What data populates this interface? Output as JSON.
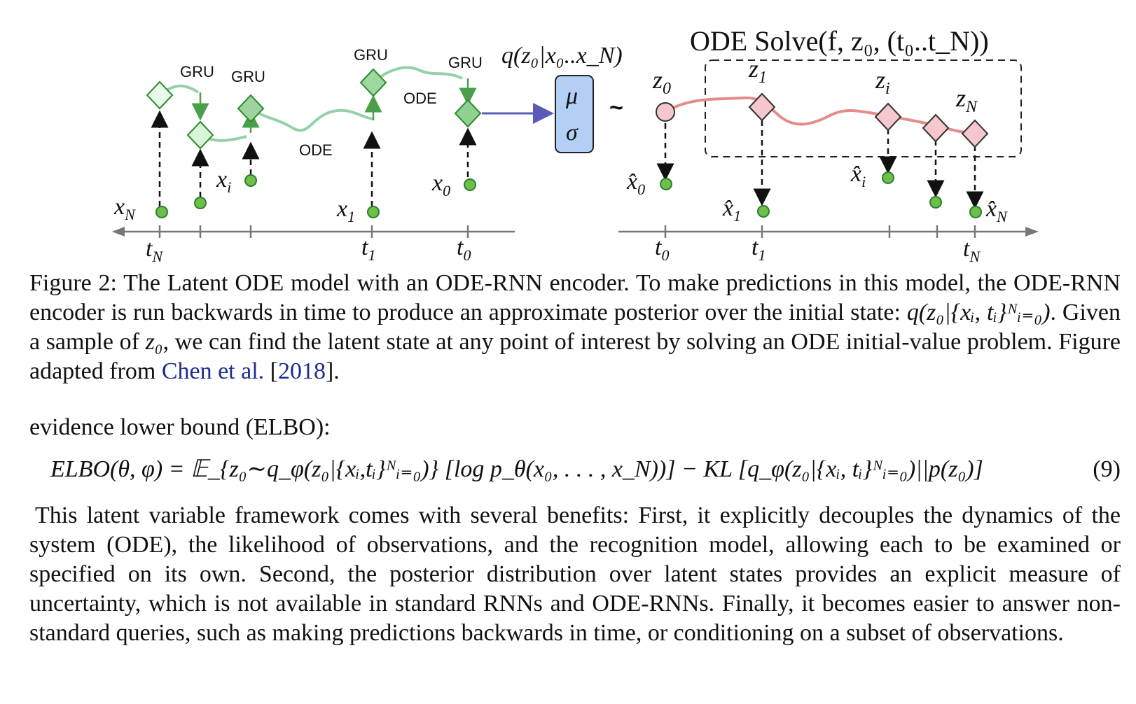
{
  "figure": {
    "left_labels": {
      "gru": [
        "GRU",
        "GRU",
        "GRU",
        "GRU"
      ],
      "ode": [
        "ODE",
        "ODE"
      ],
      "xN": "x",
      "xN_sub": "N",
      "xi": "x",
      "xi_sub": "i",
      "x1": "x",
      "x1_sub": "1",
      "x0": "x",
      "x0_sub": "0",
      "tN": "t",
      "tN_sub": "N",
      "t1": "t",
      "t1_sub": "1",
      "t0": "t",
      "t0_sub": "0"
    },
    "posterior_label": "q(z₀|x₀..x_N)",
    "mu": "μ",
    "sigma": "σ",
    "tilde": "~",
    "right_labels": {
      "solve": "ODE Solve(f, z₀, (t₀..t_N))",
      "z0": "z",
      "z0_sub": "0",
      "z1": "z",
      "z1_sub": "1",
      "zi": "z",
      "zi_sub": "i",
      "zN": "z",
      "zN_sub": "N",
      "xhat0": "x̂",
      "xhat0_sub": "0",
      "xhat1": "x̂",
      "xhat1_sub": "1",
      "xhati": "x̂",
      "xhati_sub": "i",
      "xhatN": "x̂",
      "xhatN_sub": "N",
      "t0": "t",
      "t0_sub": "0",
      "t1": "t",
      "t1_sub": "1",
      "tN": "t",
      "tN_sub": "N"
    },
    "colors": {
      "green_fill": "#8fd28f",
      "green_stroke": "#2e8b2e",
      "ode_curve": "#93d1aa",
      "pink_fill": "#f6c7cc",
      "latent_curve": "#e48c8c",
      "blue_box": "#b3cff5",
      "arrow_blue": "#5a5ab8"
    }
  },
  "caption": {
    "prefix": "Figure 2: The Latent ODE model with an ODE-RNN encoder. To make predictions in this model, the ODE-RNN encoder is run backwards in time to produce an approximate posterior over the initial state: ",
    "math1": "q(z₀|{xᵢ, tᵢ}ᴺᵢ₌₀)",
    "mid": ". Given a sample of ",
    "math2": "z₀",
    "suffix": ", we can find the latent state at any point of interest by solving an ODE initial-value problem. Figure adapted from ",
    "cite_author": "Chen et al.",
    "cite_open": " [",
    "cite_year": "2018",
    "cite_close": "]."
  },
  "lead": "evidence lower bound (ELBO):",
  "equation": {
    "text": "ELBO(θ, φ) = 𝔼_{z₀∼q_φ(z₀|{xᵢ,tᵢ}ᴺᵢ₌₀)} [log p_θ(x₀, . . . , x_N))] − KL [q_φ(z₀|{xᵢ, tᵢ}ᴺᵢ₌₀)||p(z₀)]",
    "number": "(9)"
  },
  "paragraph": "This latent variable framework comes with several benefits: First, it explicitly decouples the dynamics of the system (ODE), the likelihood of observations, and the recognition model, allowing each to be examined or specified on its own. Second, the posterior distribution over latent states provides an explicit measure of uncertainty, which is not available in standard RNNs and ODE-RNNs. Finally, it becomes easier to answer non-standard queries, such as making predictions backwards in time, or conditioning on a subset of observations."
}
